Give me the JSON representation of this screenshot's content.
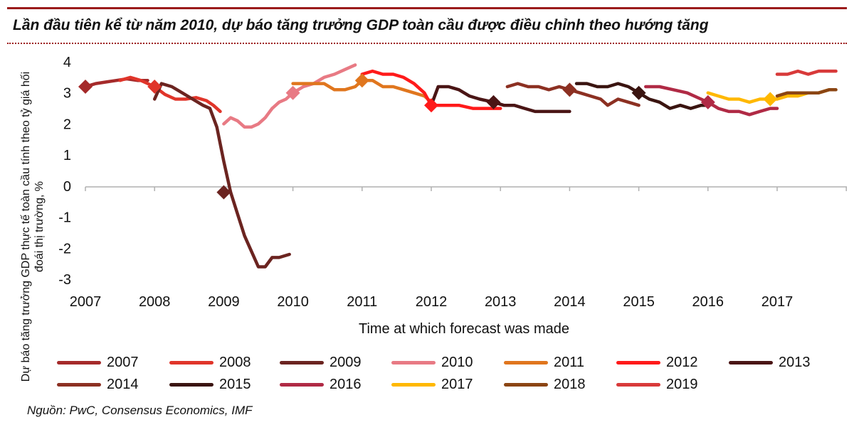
{
  "header": {
    "title": "Lần đầu tiên kể từ năm 2010, dự báo tăng trưởng GDP toàn cầu được điều chỉnh theo hướng tăng"
  },
  "footer": {
    "source": "Nguồn: PwC, Consensus Economics, IMF"
  },
  "chart_data": {
    "type": "line",
    "title": "Lần đầu tiên kể từ năm 2010, dự báo tăng trưởng GDP toàn cầu được điều chỉnh theo hướng tăng",
    "xlabel": "Time at which forecast was made",
    "ylabel": "Dự báo tăng trưởng GDP thực tế toàn cầu tính theo tỷ giá hối đoái thị trường, %",
    "xlim": [
      2007,
      2017.85
    ],
    "ylim": [
      -3,
      4
    ],
    "x_ticks": [
      "2007",
      "2008",
      "2009",
      "2010",
      "2011",
      "2012",
      "2013",
      "2014",
      "2015",
      "2016",
      "2017"
    ],
    "y_ticks": [
      "4",
      "3",
      "2",
      "1",
      "0",
      "-1",
      "-2",
      "-3"
    ],
    "grid": false,
    "legend_position": "bottom",
    "series": [
      {
        "name": "2007",
        "color": "#a52a2a",
        "x": [
          2007.0,
          2007.15,
          2007.3,
          2007.45,
          2007.6,
          2007.75,
          2007.9
        ],
        "y": [
          3.2,
          3.3,
          3.35,
          3.4,
          3.45,
          3.4,
          3.4
        ],
        "actual": [
          2007.0,
          3.2
        ]
      },
      {
        "name": "2008",
        "color": "#e0352a",
        "x": [
          2007.5,
          2007.65,
          2007.8,
          2008.0,
          2008.15,
          2008.3,
          2008.45,
          2008.6,
          2008.75,
          2008.85,
          2008.95
        ],
        "y": [
          3.4,
          3.5,
          3.4,
          3.2,
          2.95,
          2.8,
          2.8,
          2.85,
          2.75,
          2.6,
          2.4
        ],
        "actual": [
          2008.0,
          3.2
        ]
      },
      {
        "name": "2009",
        "color": "#6b2420",
        "x": [
          2008.0,
          2008.1,
          2008.25,
          2008.4,
          2008.55,
          2008.7,
          2008.8,
          2008.9,
          2009.0,
          2009.1,
          2009.2,
          2009.3,
          2009.4,
          2009.5,
          2009.6,
          2009.7,
          2009.8,
          2009.95
        ],
        "y": [
          2.8,
          3.3,
          3.2,
          3.0,
          2.8,
          2.6,
          2.5,
          1.9,
          0.8,
          -0.2,
          -0.9,
          -1.6,
          -2.1,
          -2.6,
          -2.6,
          -2.3,
          -2.3,
          -2.2
        ],
        "actual": [
          2009.0,
          -0.2
        ]
      },
      {
        "name": "2010",
        "color": "#e87a84",
        "x": [
          2009.0,
          2009.1,
          2009.2,
          2009.3,
          2009.4,
          2009.5,
          2009.6,
          2009.7,
          2009.8,
          2009.9,
          2010.0,
          2010.15,
          2010.3,
          2010.45,
          2010.6,
          2010.75,
          2010.9
        ],
        "y": [
          2.0,
          2.2,
          2.1,
          1.9,
          1.9,
          2.0,
          2.2,
          2.5,
          2.7,
          2.8,
          3.0,
          3.2,
          3.3,
          3.5,
          3.6,
          3.75,
          3.9
        ],
        "actual": [
          2010.0,
          3.0
        ]
      },
      {
        "name": "2011",
        "color": "#e0761e",
        "x": [
          2010.0,
          2010.15,
          2010.3,
          2010.45,
          2010.6,
          2010.75,
          2010.9,
          2011.0,
          2011.15,
          2011.3,
          2011.45,
          2011.6,
          2011.75,
          2011.9,
          2012.0
        ],
        "y": [
          3.3,
          3.3,
          3.3,
          3.3,
          3.1,
          3.1,
          3.2,
          3.4,
          3.4,
          3.2,
          3.2,
          3.1,
          3.0,
          2.9,
          2.7
        ],
        "actual": [
          2011.0,
          3.4
        ]
      },
      {
        "name": "2012",
        "color": "#ff1a1a",
        "x": [
          2011.0,
          2011.15,
          2011.3,
          2011.45,
          2011.6,
          2011.75,
          2011.9,
          2012.0,
          2012.2,
          2012.4,
          2012.6,
          2012.8,
          2013.0
        ],
        "y": [
          3.6,
          3.7,
          3.6,
          3.6,
          3.5,
          3.3,
          3.0,
          2.6,
          2.6,
          2.6,
          2.5,
          2.5,
          2.5
        ],
        "actual": [
          2012.0,
          2.6
        ]
      },
      {
        "name": "2013",
        "color": "#4a1515",
        "x": [
          2012.0,
          2012.1,
          2012.25,
          2012.4,
          2012.55,
          2012.7,
          2012.9,
          2013.05,
          2013.2,
          2013.35,
          2013.5,
          2013.7,
          2013.85,
          2014.0
        ],
        "y": [
          2.6,
          3.2,
          3.2,
          3.1,
          2.9,
          2.8,
          2.7,
          2.6,
          2.6,
          2.5,
          2.4,
          2.4,
          2.4,
          2.4
        ],
        "actual": [
          2012.9,
          2.7
        ]
      },
      {
        "name": "2014",
        "color": "#8c3022",
        "x": [
          2013.1,
          2013.25,
          2013.4,
          2013.55,
          2013.7,
          2013.85,
          2014.0,
          2014.15,
          2014.3,
          2014.45,
          2014.55,
          2014.7,
          2014.85,
          2015.0
        ],
        "y": [
          3.2,
          3.3,
          3.2,
          3.2,
          3.1,
          3.2,
          3.1,
          3.0,
          2.9,
          2.8,
          2.6,
          2.8,
          2.7,
          2.6
        ],
        "actual": [
          2014.0,
          3.1
        ]
      },
      {
        "name": "2015",
        "color": "#3a1410",
        "x": [
          2014.1,
          2014.25,
          2014.4,
          2014.55,
          2014.7,
          2014.85,
          2015.0,
          2015.15,
          2015.3,
          2015.45,
          2015.6,
          2015.75,
          2015.9,
          2016.0
        ],
        "y": [
          3.3,
          3.3,
          3.2,
          3.2,
          3.3,
          3.2,
          3.0,
          2.8,
          2.7,
          2.5,
          2.6,
          2.5,
          2.6,
          2.6
        ],
        "actual": [
          2015.0,
          3.0
        ]
      },
      {
        "name": "2016",
        "color": "#b02a45",
        "x": [
          2015.1,
          2015.3,
          2015.5,
          2015.7,
          2015.9,
          2016.0,
          2016.15,
          2016.3,
          2016.45,
          2016.6,
          2016.75,
          2016.9,
          2017.0
        ],
        "y": [
          3.2,
          3.2,
          3.1,
          3.0,
          2.8,
          2.7,
          2.5,
          2.4,
          2.4,
          2.3,
          2.4,
          2.5,
          2.5
        ],
        "actual": [
          2016.0,
          2.7
        ]
      },
      {
        "name": "2017",
        "color": "#ffb800",
        "x": [
          2016.0,
          2016.15,
          2016.3,
          2016.45,
          2016.6,
          2016.75,
          2016.9,
          2017.0,
          2017.15,
          2017.3,
          2017.45,
          2017.6,
          2017.75
        ],
        "y": [
          3.0,
          2.9,
          2.8,
          2.8,
          2.7,
          2.8,
          2.8,
          2.8,
          2.9,
          2.9,
          3.0,
          3.0,
          3.1
        ],
        "actual": [
          2016.9,
          2.8
        ]
      },
      {
        "name": "2018",
        "color": "#8b4513",
        "x": [
          2017.0,
          2017.15,
          2017.3,
          2017.45,
          2017.6,
          2017.75,
          2017.85
        ],
        "y": [
          2.9,
          3.0,
          3.0,
          3.0,
          3.0,
          3.1,
          3.1
        ]
      },
      {
        "name": "2019",
        "color": "#d83a3a",
        "x": [
          2017.0,
          2017.15,
          2017.3,
          2017.45,
          2017.6,
          2017.75,
          2017.85
        ],
        "y": [
          3.6,
          3.6,
          3.7,
          3.6,
          3.7,
          3.7,
          3.7
        ]
      }
    ]
  }
}
